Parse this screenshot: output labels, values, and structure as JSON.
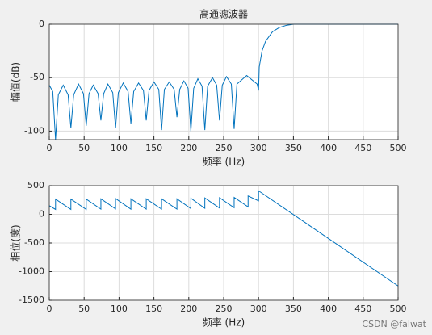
{
  "chart_data": [
    {
      "type": "line",
      "title": "高通滤波器",
      "xlabel": "频率 (Hz)",
      "ylabel": "幅值(dB)",
      "x": [
        0,
        5,
        9,
        13,
        20,
        27,
        31,
        35,
        42,
        49,
        53,
        57,
        63,
        70,
        74,
        78,
        84,
        91,
        95,
        99,
        106,
        113,
        117,
        121,
        128,
        135,
        139,
        143,
        150,
        157,
        161,
        165,
        172,
        179,
        183,
        187,
        193,
        199,
        203,
        207,
        213,
        219,
        223,
        227,
        234,
        240,
        244,
        248,
        254,
        261,
        265,
        269,
        283,
        298,
        300,
        301,
        305,
        310,
        320,
        330,
        340,
        350,
        500
      ],
      "series": [
        {
          "color": "#0072bd",
          "values": [
            -57,
            -63,
            -108,
            -66,
            -57,
            -66,
            -97,
            -66,
            -56,
            -65,
            -95,
            -65,
            -57,
            -65,
            -90,
            -65,
            -56,
            -64,
            -97,
            -64,
            -55,
            -63,
            -93,
            -63,
            -55,
            -62,
            -90,
            -62,
            -54,
            -61,
            -99,
            -61,
            -54,
            -61,
            -87,
            -61,
            -53,
            -60,
            -100,
            -60,
            -51,
            -58,
            -99,
            -58,
            -50,
            -57,
            -90,
            -57,
            -49,
            -56,
            -98,
            -56,
            -48,
            -56,
            -62,
            -40,
            -25,
            -16,
            -7,
            -3,
            -1,
            0,
            0
          ]
        }
      ],
      "xlim": [
        0,
        500
      ],
      "xticks": [
        0,
        50,
        100,
        150,
        200,
        250,
        300,
        350,
        400,
        450,
        500
      ],
      "ylim": [
        -108,
        0
      ],
      "yticks": [
        0,
        -50,
        -100
      ],
      "grid": true
    },
    {
      "type": "line",
      "xlabel": "频率 (Hz)",
      "ylabel": "相位(度)",
      "x": [
        0,
        9,
        9,
        31,
        31,
        53,
        53,
        74,
        74,
        95,
        95,
        117,
        117,
        139,
        139,
        161,
        161,
        183,
        183,
        203,
        203,
        223,
        223,
        244,
        244,
        265,
        265,
        285,
        285,
        300,
        300,
        500
      ],
      "series": [
        {
          "color": "#0072bd",
          "values": [
            150,
            85,
            265,
            85,
            265,
            85,
            265,
            90,
            270,
            95,
            275,
            90,
            270,
            90,
            270,
            90,
            270,
            90,
            270,
            100,
            280,
            105,
            285,
            110,
            290,
            115,
            295,
            130,
            320,
            235,
            410,
            -1250
          ]
        }
      ],
      "xlim": [
        0,
        500
      ],
      "xticks": [
        0,
        50,
        100,
        150,
        200,
        250,
        300,
        350,
        400,
        450,
        500
      ],
      "ylim": [
        -1500,
        500
      ],
      "yticks": [
        500,
        0,
        -500,
        -1000,
        -1500
      ],
      "grid": true
    }
  ],
  "watermark": "CSDN @falwat"
}
